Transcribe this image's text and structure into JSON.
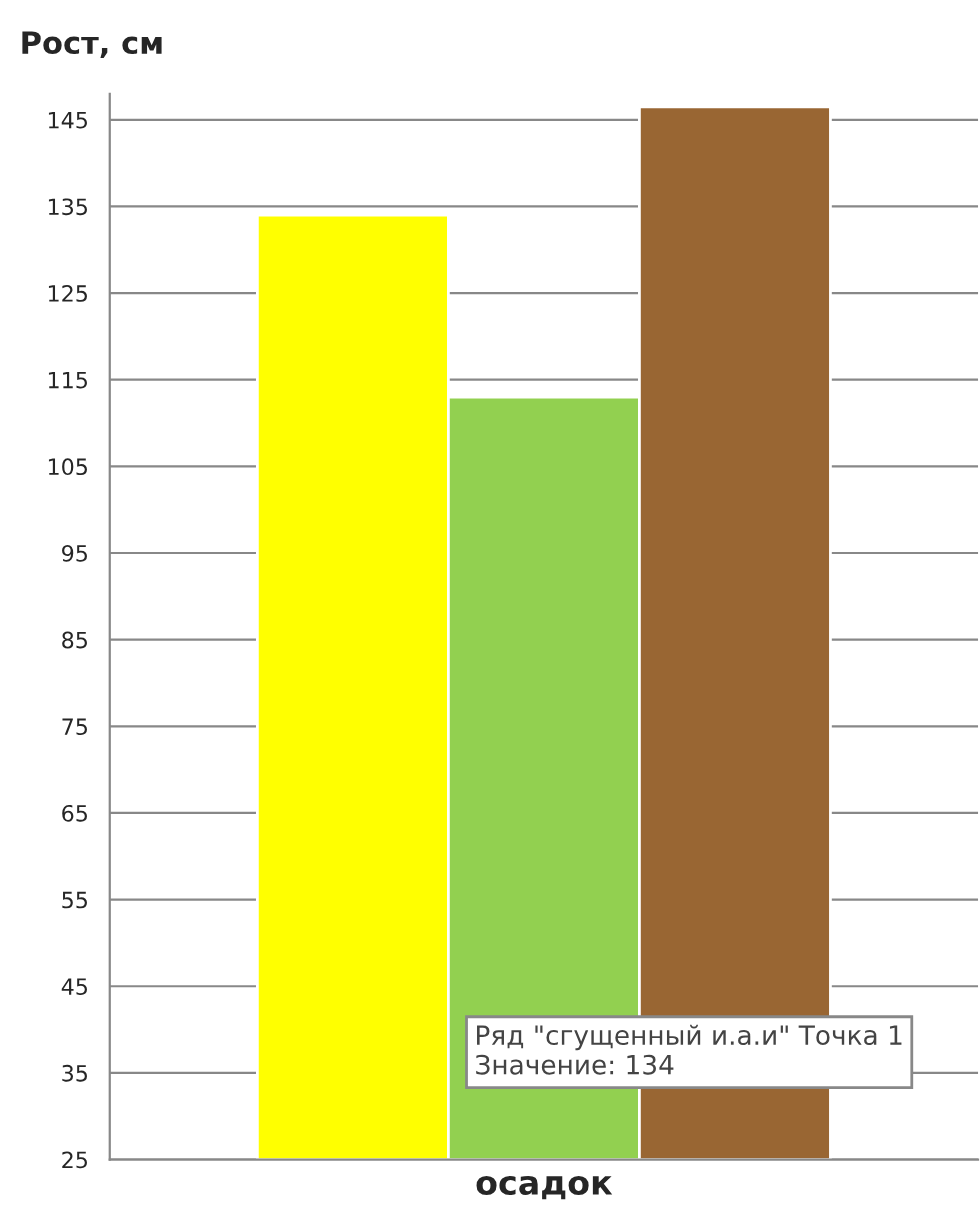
{
  "chart_data": {
    "type": "bar",
    "ylabel": "Рост, см",
    "categories": [
      "осадок"
    ],
    "series": [
      {
        "color": "#ffff00",
        "values": [
          134
        ]
      },
      {
        "color": "#92d050",
        "values": [
          113
        ]
      },
      {
        "color": "#996633",
        "values": [
          146.5
        ]
      }
    ],
    "ylim": [
      25,
      148
    ],
    "yticks": [
      25,
      35,
      45,
      55,
      65,
      75,
      85,
      95,
      105,
      115,
      125,
      135,
      145
    ],
    "grid": "y",
    "legend": false,
    "annotations": [
      "Ряд \"сгущенный и.а.и\" Точка 1\nЗначение: 134"
    ]
  }
}
